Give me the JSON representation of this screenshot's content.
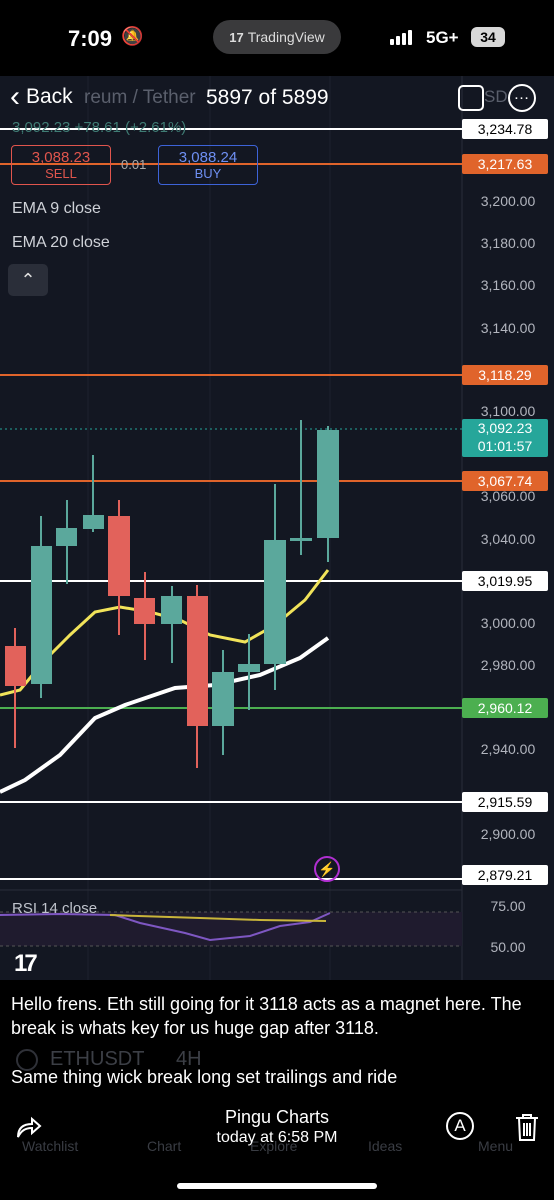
{
  "status": {
    "time": "7:09",
    "app_pill": "TradingView",
    "network": "5G+",
    "battery": "34"
  },
  "viewer": {
    "back_label": "Back",
    "counter": "5897 of 5899",
    "pair_ghost": "reum / Tether",
    "currency_ghost": "SD"
  },
  "chart": {
    "price_change": "3,092.23 +78.61 (+2.61%)",
    "sell_price": "3,088.23",
    "sell_label": "SELL",
    "spread": "0.01",
    "buy_price": "3,088.24",
    "buy_label": "BUY",
    "ema9_label": "EMA 9 close",
    "ema20_label": "EMA 20 close",
    "collapse_icon": "chevron-up",
    "rsi_label": "RSI 14 close",
    "logo": "TV",
    "axis_labels": [
      "3,200.00",
      "3,180.00",
      "3,160.00",
      "3,140.00",
      "3,100.00",
      "3,060.00",
      "3,040.00",
      "3,000.00",
      "2,980.00",
      "2,940.00",
      "2,900.00",
      "75.00",
      "50.00"
    ],
    "price_tags": {
      "t3234": "3,234.78",
      "t3217": "3,217.63",
      "t3118": "3,118.29",
      "current": "3,092.23",
      "countdown": "01:01:57",
      "t3067": "3,067.74",
      "t3019": "3,019.95",
      "t2960": "2,960.12",
      "t2915": "2,915.59",
      "t2879": "2,879.21"
    },
    "colors": {
      "up": "#5ba89c",
      "down": "#e2625b",
      "ema9": "#f1e35a",
      "ema20": "#ffffff",
      "orange_line": "#e0642b",
      "green_line": "#4caf50",
      "rsi": "#7e57c2"
    }
  },
  "post": {
    "message_1": "Hello frens. Eth still going for it 3118 acts as a magnet here. The break is whats key for us huge gap after 3118.",
    "ghost_symbol": "ETHUSDT",
    "ghost_timeframe": "4H",
    "message_2": "Same thing wick break long set trailings and ride",
    "author": "Pingu Charts",
    "timestamp": "today at 6:58 PM"
  },
  "nav_ghost": {
    "watchlist": "Watchlist",
    "chart": "Chart",
    "explore": "Explore",
    "ideas": "Ideas",
    "menu": "Menu"
  }
}
